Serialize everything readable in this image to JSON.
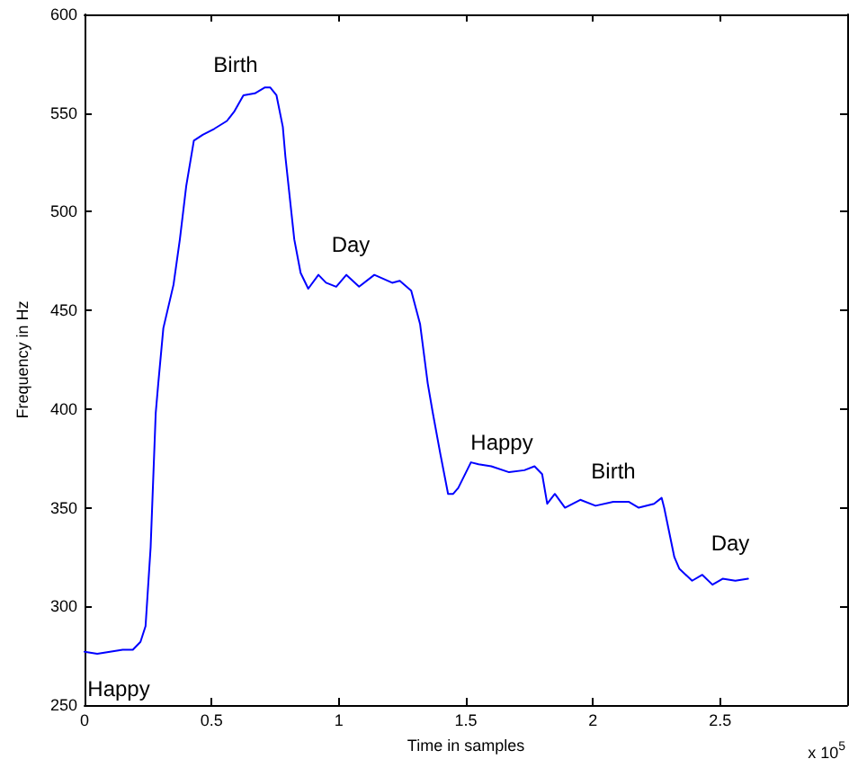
{
  "chart_data": {
    "type": "line",
    "xlabel": "Time in samples",
    "ylabel": "Frequency in Hz",
    "x": [
      0,
      0.05,
      0.1,
      0.15,
      0.19,
      0.22,
      0.24,
      0.26,
      0.28,
      0.29,
      0.31,
      0.35,
      0.375,
      0.4,
      0.43,
      0.465,
      0.51,
      0.56,
      0.59,
      0.625,
      0.67,
      0.71,
      0.73,
      0.755,
      0.78,
      0.79,
      0.825,
      0.85,
      0.88,
      0.92,
      0.95,
      0.99,
      1.03,
      1.08,
      1.14,
      1.21,
      1.24,
      1.285,
      1.32,
      1.35,
      1.37,
      1.4,
      1.43,
      1.45,
      1.47,
      1.52,
      1.55,
      1.6,
      1.67,
      1.73,
      1.77,
      1.8,
      1.82,
      1.85,
      1.89,
      1.95,
      2.01,
      2.08,
      2.14,
      2.18,
      2.24,
      2.27,
      2.28,
      2.32,
      2.34,
      2.39,
      2.43,
      2.47,
      2.51,
      2.56,
      2.61
    ],
    "series": [
      {
        "color": "#0000ff",
        "values": [
          277,
          276,
          277,
          278,
          278,
          282,
          290,
          330,
          398,
          413,
          441,
          463,
          486,
          513,
          536,
          539,
          542,
          546,
          551,
          559,
          560,
          563,
          563,
          559,
          543,
          528,
          486,
          469,
          461,
          468,
          464,
          462,
          468,
          462,
          468,
          464,
          465,
          460,
          443,
          413,
          398,
          377,
          357,
          357,
          360,
          373,
          372,
          371,
          368,
          369,
          371,
          367,
          352,
          357,
          350,
          354,
          351,
          353,
          353,
          350,
          352,
          355,
          350,
          325,
          319,
          313,
          316,
          311,
          314,
          313,
          314
        ]
      }
    ],
    "xlim": [
      0,
      3
    ],
    "xticks": [
      0,
      0.5,
      1,
      1.5,
      2,
      2.5
    ],
    "ylim": [
      250,
      600
    ],
    "yticks": [
      250,
      300,
      350,
      400,
      450,
      500,
      550,
      600
    ],
    "grid": false,
    "marker": "none",
    "line_style": "solid",
    "annotations": [
      "Happy",
      "Birth",
      "Day",
      "Happy",
      "Birth",
      "Day",
      "x 10$^{5}$"
    ]
  }
}
